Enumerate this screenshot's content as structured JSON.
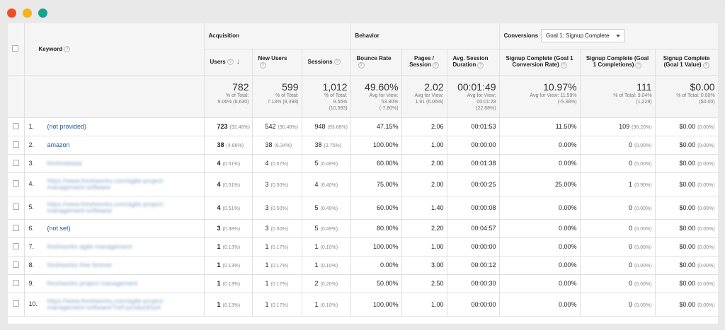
{
  "window": {
    "dots": [
      "#f04e23",
      "#f6b318",
      "#16a38d"
    ]
  },
  "header": {
    "keyword": "Keyword",
    "acquisition": "Acquisition",
    "behavior": "Behavior",
    "conversions": "Conversions",
    "goal_select": "Goal 1: Signup Complete",
    "columns": {
      "users": "Users",
      "new_users": "New Users",
      "sessions": "Sessions",
      "bounce_rate": "Bounce Rate",
      "pages_session_1": "Pages /",
      "pages_session_2": "Session",
      "avg_duration_1": "Avg. Session",
      "avg_duration_2": "Duration",
      "conv_rate_1": "Signup Complete (Goal 1",
      "conv_rate_2": "Conversion Rate)",
      "completions_1": "Signup Complete (Goal",
      "completions_2": "1 Completions)",
      "value_1": "Signup Complete",
      "value_2": "(Goal 1 Value)"
    }
  },
  "totals": {
    "users": {
      "big": "782",
      "l1": "% of Total:",
      "l2": "9.06% (8,630)"
    },
    "new_users": {
      "big": "599",
      "l1": "% of Total:",
      "l2": "7.13% (8,398)"
    },
    "sessions": {
      "big": "1,012",
      "l1": "% of Total:",
      "l2": "9.55%",
      "l3": "(10,593)"
    },
    "bounce_rate": {
      "big": "49.60%",
      "l1": "Avg for View:",
      "l2": "53.80%",
      "l3": "(-7.80%)"
    },
    "pages_session": {
      "big": "2.02",
      "l1": "Avg for View:",
      "l2": "1.91 (6.06%)"
    },
    "avg_duration": {
      "big": "00:01:49",
      "l1": "Avg for View:",
      "l2": "00:01:28",
      "l3": "(22.68%)"
    },
    "conv_rate": {
      "big": "10.97%",
      "l1": "Avg for View: 11.59%",
      "l2": "(-5.38%)"
    },
    "completions": {
      "big": "111",
      "l1": "% of Total: 9.04%",
      "l2": "(1,228)"
    },
    "value": {
      "big": "$0.00",
      "l1": "% of Total: 0.00%",
      "l2": "($0.00)"
    }
  },
  "rows": [
    {
      "idx": "1.",
      "kw": "(not provided)",
      "kw2": "",
      "blur": false,
      "users": "723",
      "users_pct": "(92.46%)",
      "new_users": "542",
      "new_pct": "(90.48%)",
      "sessions": "948",
      "sess_pct": "(93.68%)",
      "bounce": "47.15%",
      "pages": "2.06",
      "duration": "00:01:53",
      "conv": "11.50%",
      "comp": "109",
      "comp_pct": "(98.20%)",
      "value": "$0.00",
      "value_pct": "(0.00%)"
    },
    {
      "idx": "2.",
      "kw": "amazon",
      "kw2": "",
      "blur": false,
      "users": "38",
      "users_pct": "(4.86%)",
      "new_users": "38",
      "new_pct": "(6.34%)",
      "sessions": "38",
      "sess_pct": "(3.75%)",
      "bounce": "100.00%",
      "pages": "1.00",
      "duration": "00:00:00",
      "conv": "0.00%",
      "comp": "0",
      "comp_pct": "(0.00%)",
      "value": "$0.00",
      "value_pct": "(0.00%)"
    },
    {
      "idx": "3.",
      "kw": "freshrelease",
      "kw2": "",
      "blur": true,
      "users": "4",
      "users_pct": "(0.51%)",
      "new_users": "4",
      "new_pct": "(0.67%)",
      "sessions": "5",
      "sess_pct": "(0.49%)",
      "bounce": "60.00%",
      "pages": "2.00",
      "duration": "00:01:38",
      "conv": "0.00%",
      "comp": "0",
      "comp_pct": "(0.00%)",
      "value": "$0.00",
      "value_pct": "(0.00%)"
    },
    {
      "idx": "4.",
      "kw": "https://www.freshworks.com/agile-project-",
      "kw2": "management-software",
      "blur": true,
      "users": "4",
      "users_pct": "(0.51%)",
      "new_users": "3",
      "new_pct": "(0.50%)",
      "sessions": "4",
      "sess_pct": "(0.40%)",
      "bounce": "75.00%",
      "pages": "2.00",
      "duration": "00:00:25",
      "conv": "25.00%",
      "comp": "1",
      "comp_pct": "(0.90%)",
      "value": "$0.00",
      "value_pct": "(0.00%)"
    },
    {
      "idx": "5.",
      "kw": "https://www.freshworks.com/agile-project-",
      "kw2": "management-software/",
      "blur": true,
      "users": "4",
      "users_pct": "(0.51%)",
      "new_users": "3",
      "new_pct": "(0.50%)",
      "sessions": "5",
      "sess_pct": "(0.49%)",
      "bounce": "60.00%",
      "pages": "1.40",
      "duration": "00:00:08",
      "conv": "0.00%",
      "comp": "0",
      "comp_pct": "(0.00%)",
      "value": "$0.00",
      "value_pct": "(0.00%)"
    },
    {
      "idx": "6.",
      "kw": "(not set)",
      "kw2": "",
      "blur": false,
      "users": "3",
      "users_pct": "(0.38%)",
      "new_users": "3",
      "new_pct": "(0.50%)",
      "sessions": "5",
      "sess_pct": "(0.49%)",
      "bounce": "80.00%",
      "pages": "2.20",
      "duration": "00:04:57",
      "conv": "0.00%",
      "comp": "0",
      "comp_pct": "(0.00%)",
      "value": "$0.00",
      "value_pct": "(0.00%)"
    },
    {
      "idx": "7.",
      "kw": "freshworks agile management",
      "kw2": "",
      "blur": true,
      "users": "1",
      "users_pct": "(0.13%)",
      "new_users": "1",
      "new_pct": "(0.17%)",
      "sessions": "1",
      "sess_pct": "(0.10%)",
      "bounce": "100.00%",
      "pages": "1.00",
      "duration": "00:00:00",
      "conv": "0.00%",
      "comp": "0",
      "comp_pct": "(0.00%)",
      "value": "$0.00",
      "value_pct": "(0.00%)"
    },
    {
      "idx": "8.",
      "kw": "freshworks free forever",
      "kw2": "",
      "blur": true,
      "users": "1",
      "users_pct": "(0.13%)",
      "new_users": "1",
      "new_pct": "(0.17%)",
      "sessions": "1",
      "sess_pct": "(0.10%)",
      "bounce": "0.00%",
      "pages": "3.00",
      "duration": "00:00:12",
      "conv": "0.00%",
      "comp": "0",
      "comp_pct": "(0.00%)",
      "value": "$0.00",
      "value_pct": "(0.00%)"
    },
    {
      "idx": "9.",
      "kw": "freshworks project management",
      "kw2": "",
      "blur": true,
      "users": "1",
      "users_pct": "(0.13%)",
      "new_users": "1",
      "new_pct": "(0.17%)",
      "sessions": "2",
      "sess_pct": "(0.20%)",
      "bounce": "50.00%",
      "pages": "2.50",
      "duration": "00:00:30",
      "conv": "0.00%",
      "comp": "0",
      "comp_pct": "(0.00%)",
      "value": "$0.00",
      "value_pct": "(0.00%)"
    },
    {
      "idx": "10.",
      "kw": "https://www.freshworks.com/agile-project-",
      "kw2": "management-software/?ref=producthunt",
      "blur": true,
      "users": "1",
      "users_pct": "(0.13%)",
      "new_users": "1",
      "new_pct": "(0.17%)",
      "sessions": "1",
      "sess_pct": "(0.10%)",
      "bounce": "100.00%",
      "pages": "1.00",
      "duration": "00:00:00",
      "conv": "0.00%",
      "comp": "0",
      "comp_pct": "(0.00%)",
      "value": "$0.00",
      "value_pct": "(0.00%)"
    }
  ]
}
